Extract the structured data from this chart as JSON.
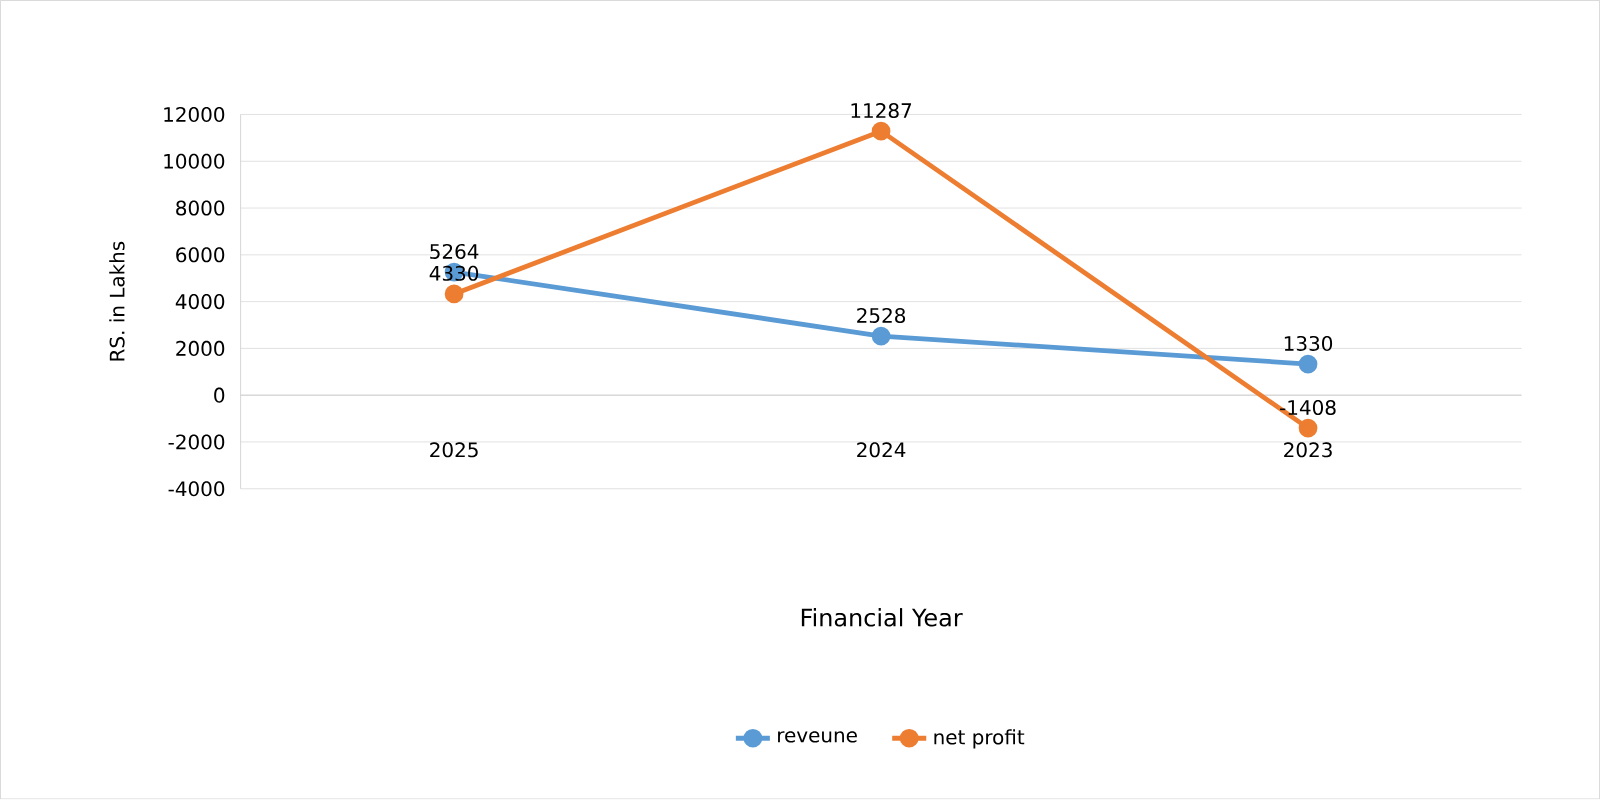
{
  "chart_data": {
    "type": "line",
    "xlabel": "Financial Year",
    "ylabel": "RS. in Lakhs",
    "categories": [
      "2025",
      "2024",
      "2023"
    ],
    "series": [
      {
        "name": "reveune",
        "color": "#5b9bd5",
        "values": [
          5264,
          2528,
          1330
        ]
      },
      {
        "name": "net profit",
        "color": "#ed7d31",
        "values": [
          4330,
          11287,
          -1408
        ]
      }
    ],
    "ylim": [
      -4000,
      12000
    ],
    "yticks": [
      -4000,
      -2000,
      0,
      2000,
      4000,
      6000,
      8000,
      10000,
      12000
    ],
    "grid": "y",
    "legend": "bottom",
    "marker": "circle",
    "line_style": "solid",
    "data_labels": true
  }
}
